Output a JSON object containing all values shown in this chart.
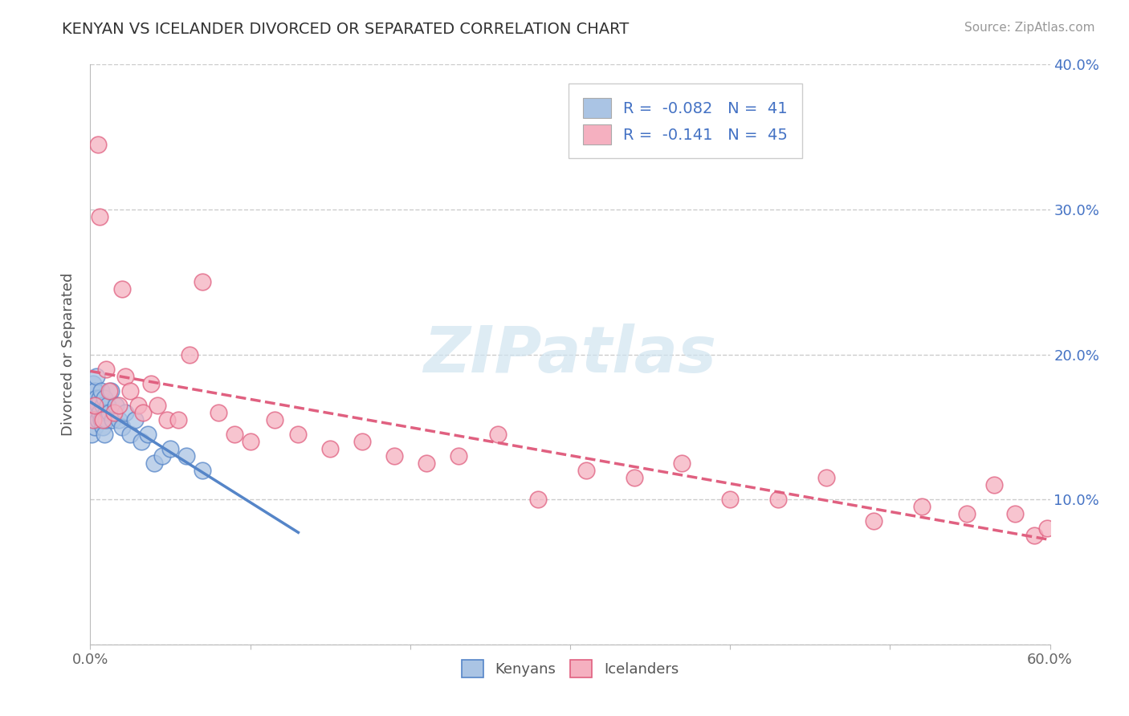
{
  "title": "KENYAN VS ICELANDER DIVORCED OR SEPARATED CORRELATION CHART",
  "source": "Source: ZipAtlas.com",
  "ylabel": "Divorced or Separated",
  "kenyan_R": -0.082,
  "kenyan_N": 41,
  "icelander_R": -0.141,
  "icelander_N": 45,
  "kenyan_color": "#aac4e4",
  "icelander_color": "#f5b0c0",
  "kenyan_line_color": "#5585c8",
  "icelander_line_color": "#e06080",
  "legend_text_color": "#4472c4",
  "xlim": [
    0.0,
    0.6
  ],
  "ylim": [
    0.0,
    0.4
  ],
  "watermark_text": "ZIPatlas",
  "kenyan_x": [
    0.001,
    0.001,
    0.002,
    0.002,
    0.002,
    0.003,
    0.003,
    0.003,
    0.004,
    0.004,
    0.004,
    0.005,
    0.005,
    0.005,
    0.006,
    0.006,
    0.007,
    0.007,
    0.008,
    0.008,
    0.009,
    0.009,
    0.01,
    0.01,
    0.011,
    0.012,
    0.013,
    0.014,
    0.016,
    0.018,
    0.02,
    0.022,
    0.025,
    0.028,
    0.032,
    0.036,
    0.04,
    0.045,
    0.05,
    0.06,
    0.07
  ],
  "kenyan_y": [
    0.145,
    0.175,
    0.155,
    0.18,
    0.165,
    0.15,
    0.165,
    0.175,
    0.16,
    0.17,
    0.185,
    0.155,
    0.165,
    0.155,
    0.17,
    0.16,
    0.175,
    0.155,
    0.165,
    0.15,
    0.17,
    0.145,
    0.16,
    0.155,
    0.165,
    0.16,
    0.175,
    0.155,
    0.165,
    0.155,
    0.15,
    0.16,
    0.145,
    0.155,
    0.14,
    0.145,
    0.125,
    0.13,
    0.135,
    0.13,
    0.12
  ],
  "icelander_x": [
    0.002,
    0.003,
    0.005,
    0.006,
    0.008,
    0.01,
    0.012,
    0.015,
    0.018,
    0.02,
    0.022,
    0.025,
    0.03,
    0.033,
    0.038,
    0.042,
    0.048,
    0.055,
    0.062,
    0.07,
    0.08,
    0.09,
    0.1,
    0.115,
    0.13,
    0.15,
    0.17,
    0.19,
    0.21,
    0.23,
    0.255,
    0.28,
    0.31,
    0.34,
    0.37,
    0.4,
    0.43,
    0.46,
    0.49,
    0.52,
    0.548,
    0.565,
    0.578,
    0.59,
    0.598
  ],
  "icelander_y": [
    0.155,
    0.165,
    0.345,
    0.295,
    0.155,
    0.19,
    0.175,
    0.16,
    0.165,
    0.245,
    0.185,
    0.175,
    0.165,
    0.16,
    0.18,
    0.165,
    0.155,
    0.155,
    0.2,
    0.25,
    0.16,
    0.145,
    0.14,
    0.155,
    0.145,
    0.135,
    0.14,
    0.13,
    0.125,
    0.13,
    0.145,
    0.1,
    0.12,
    0.115,
    0.125,
    0.1,
    0.1,
    0.115,
    0.085,
    0.095,
    0.09,
    0.11,
    0.09,
    0.075,
    0.08
  ]
}
